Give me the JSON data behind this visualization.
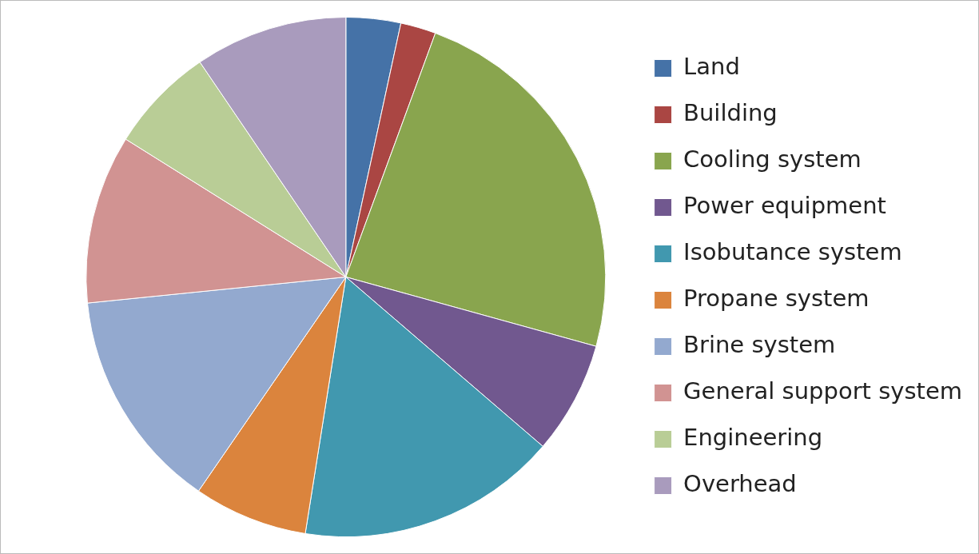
{
  "chart_data": {
    "type": "pie",
    "categories": [
      "Land",
      "Building",
      "Cooling system",
      "Power equipment",
      "Isobutance system",
      "Propane system",
      "Brine system",
      "General support system",
      "Engineering",
      "Overhead"
    ],
    "values": [
      3.4,
      2.2,
      23.7,
      7.0,
      16.2,
      7.1,
      13.8,
      10.5,
      6.6,
      9.5
    ],
    "colors": [
      "#4572a7",
      "#aa4643",
      "#89a54e",
      "#71588f",
      "#4198af",
      "#db843d",
      "#93a9cf",
      "#d19392",
      "#b9cd96",
      "#a99bbd"
    ],
    "legend": "right"
  }
}
